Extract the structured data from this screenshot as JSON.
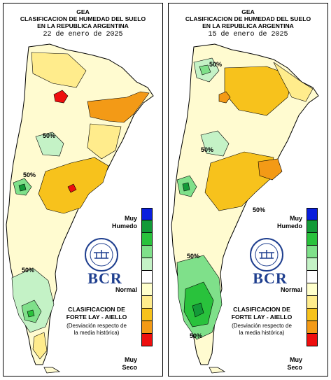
{
  "panels": [
    {
      "id": "current",
      "header_line1": "GEA",
      "header_line2": "CLASIFICACION DE HUMEDAD DEL SUELO",
      "header_line3": "EN LA REPUBLICA ARGENTINA",
      "date": "22 de enero de 2025",
      "contour_labels": [
        "50%",
        "50%",
        "50%"
      ]
    },
    {
      "id": "previous",
      "header_line1": "GEA",
      "header_line2": "CLASIFICACION DE HUMEDAD DEL SUELO",
      "header_line3": "EN LA REPUBLICA ARGENTINA",
      "date": "15 de enero de 2025",
      "contour_labels": [
        "50%",
        "50%",
        "50%",
        "50%",
        "50%"
      ]
    }
  ],
  "legend": {
    "wet_label_1": "Muy",
    "wet_label_2": "Humedo",
    "normal_label": "Normal",
    "dry_label_1": "Muy",
    "dry_label_2": "Seco",
    "scale_colors": [
      "#0a1fdc",
      "#139a38",
      "#29c23c",
      "#7fe08a",
      "#c4f2c6",
      "#ffffff",
      "#ffffcc",
      "#ffec8c",
      "#f7c21c",
      "#f39a16",
      "#ee0e0e"
    ],
    "classification_title_1": "CLASIFICACION DE",
    "classification_title_2": "FORTE LAY - AIELLO",
    "classification_note_1": "(Desviación respecto de",
    "classification_note_2": "la media histórica)"
  },
  "logo": {
    "text": "BCR",
    "icon": "bolsa-de-comercio-seal-icon",
    "brand_color": "#1f3f8f"
  }
}
